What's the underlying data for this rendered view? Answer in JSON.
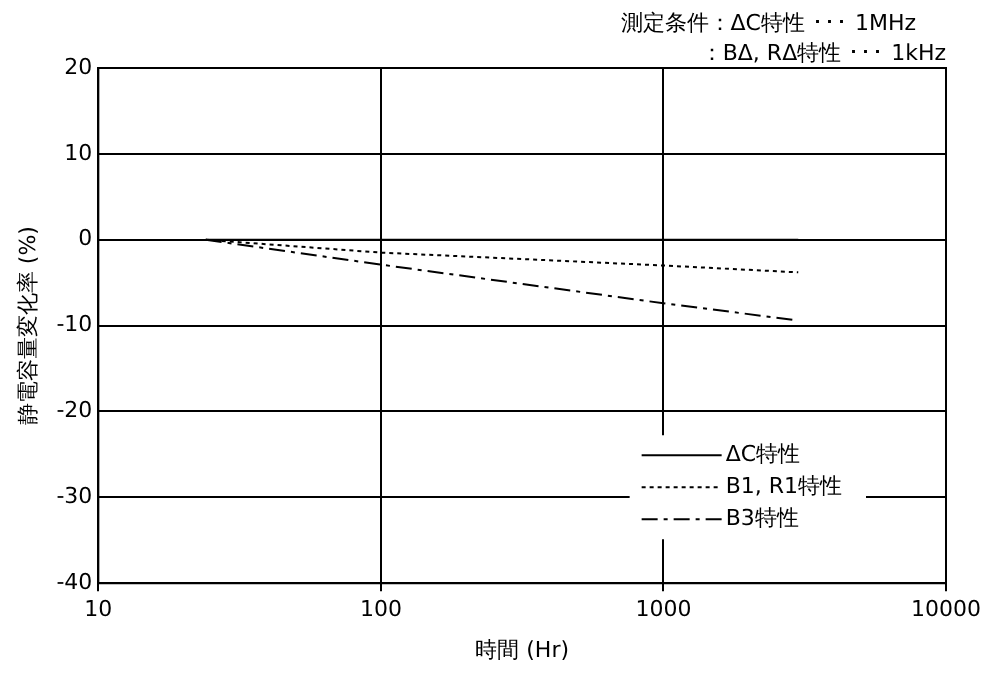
{
  "chart_data": {
    "type": "line",
    "xlabel": "時間 (Hr)",
    "ylabel": "静電容量変化率 (%)",
    "annotations": [
      "測定条件：ΔC特性 ･･･ 1MHz",
      "：BΔ, RΔ特性 ･･･ 1kHz"
    ],
    "log": "x",
    "xlim": [
      10,
      10000
    ],
    "xticks": [
      10,
      100,
      1000,
      10000
    ],
    "ylim": [
      -40,
      20
    ],
    "yticks": [
      -40,
      -30,
      -20,
      -10,
      0,
      10,
      20
    ],
    "grid": true,
    "legend": "bottom right",
    "marker": "none",
    "series": [
      {
        "name": "ΔC特性",
        "color": "#000000",
        "line_style": "solid",
        "x": [
          24,
          3000
        ],
        "values": [
          0,
          0
        ]
      },
      {
        "name": "B1, R1特性",
        "color": "#000000",
        "line_style": "dotted",
        "x": [
          24,
          100,
          1000,
          3000
        ],
        "values": [
          0,
          -1.5,
          -3.0,
          -3.8
        ]
      },
      {
        "name": "B3特性",
        "color": "#000000",
        "line_style": "dashdot",
        "x": [
          24,
          100,
          1000,
          3000
        ],
        "values": [
          0,
          -2.9,
          -7.4,
          -9.4
        ]
      }
    ]
  }
}
